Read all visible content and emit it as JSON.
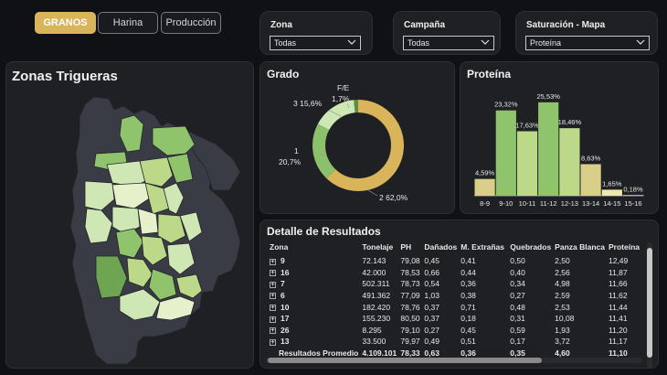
{
  "tabs": [
    {
      "label": "GRANOS",
      "active": true
    },
    {
      "label": "Harina",
      "active": false
    },
    {
      "label": "Producción",
      "active": false
    }
  ],
  "filters": {
    "zona": {
      "label": "Zona",
      "value": "Todas"
    },
    "campana": {
      "label": "Campaña",
      "value": "Todas"
    },
    "saturacion": {
      "label": "Saturación - Mapa",
      "value": "Proteína"
    }
  },
  "map": {
    "title": "Zonas Trigueras"
  },
  "grado": {
    "title": "Grado",
    "labels": {
      "fe": "F/E",
      "fe_pct": "1,7%",
      "g3": "3 15,6%",
      "g1": "1",
      "g1_pct": "20,7%",
      "g2": "2 62,0%"
    }
  },
  "proteina": {
    "title": "Proteína"
  },
  "detalle": {
    "title": "Detalle de Resultados",
    "columns": [
      "Zona",
      "Tonelaje",
      "PH",
      "Dañados",
      "M. Extrañas",
      "Quebrados",
      "Panza Blanca",
      "Proteína"
    ],
    "rows": [
      [
        "9",
        "72.143",
        "79,08",
        "0,45",
        "0,41",
        "0,50",
        "2,50",
        "12,49"
      ],
      [
        "16",
        "42.000",
        "78,53",
        "0,66",
        "0,44",
        "0,40",
        "2,56",
        "11,87"
      ],
      [
        "7",
        "502.311",
        "78,73",
        "0,54",
        "0,36",
        "0,34",
        "4,98",
        "11,66"
      ],
      [
        "6",
        "491.362",
        "77,09",
        "1,03",
        "0,38",
        "0,27",
        "2,59",
        "11,62"
      ],
      [
        "10",
        "182.420",
        "78,76",
        "0,37",
        "0,71",
        "0,48",
        "2,53",
        "11,44"
      ],
      [
        "17",
        "155.230",
        "80,50",
        "0,37",
        "0,18",
        "0,31",
        "10,08",
        "11,41"
      ],
      [
        "26",
        "8.295",
        "79,10",
        "0,27",
        "0,45",
        "0,59",
        "1,93",
        "11,20"
      ],
      [
        "13",
        "33.500",
        "79,97",
        "0,49",
        "0,51",
        "0,17",
        "3,72",
        "11,17"
      ]
    ],
    "total": [
      "Resultados Promedio",
      "4.109.101",
      "78,33",
      "0,63",
      "0,36",
      "0,35",
      "4,60",
      "11,10"
    ]
  },
  "chart_data": [
    {
      "type": "pie",
      "title": "Grado",
      "categories": [
        "2",
        "1",
        "3",
        "F/E"
      ],
      "values": [
        62.0,
        20.7,
        15.6,
        1.7
      ],
      "colors": [
        "#d9b45a",
        "#8cc06a",
        "#cfe7b4",
        "#5e8c44"
      ]
    },
    {
      "type": "bar",
      "title": "Proteína",
      "categories": [
        "8-9",
        "9-10",
        "10-11",
        "11-12",
        "12-13",
        "13-14",
        "14-15",
        "15-16"
      ],
      "values": [
        4.59,
        23.32,
        17.63,
        25.53,
        18.46,
        8.63,
        1.65,
        0.18
      ],
      "value_labels": [
        "4,59%",
        "23,32%",
        "17,63%",
        "25,53%",
        "18,46%",
        "8,63%",
        "1,65%",
        "0,18%"
      ],
      "colors": [
        "#d9cf8a",
        "#8fc46c",
        "#bcd98a",
        "#8fc46c",
        "#bcd98a",
        "#d9cf8a",
        "#ede7b0",
        "#ede7b0"
      ]
    }
  ]
}
